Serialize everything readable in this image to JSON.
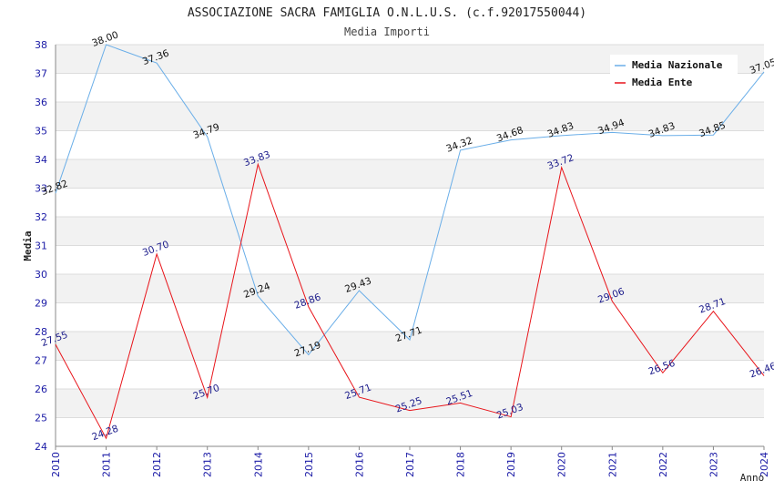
{
  "chart_data": {
    "type": "line",
    "title": "ASSOCIAZIONE SACRA FAMIGLIA O.N.L.U.S. (c.f.92017550044)",
    "subtitle": "Media Importi",
    "xlabel": "Anno",
    "ylabel": "Media",
    "ylim": [
      24,
      38
    ],
    "grid": true,
    "legend_position": "top-right",
    "categories": [
      "2010",
      "2011",
      "2012",
      "2013",
      "2014",
      "2015",
      "2016",
      "2017",
      "2018",
      "2019",
      "2020",
      "2021",
      "2022",
      "2023",
      "2024"
    ],
    "series": [
      {
        "name": "Media Nazionale",
        "color": "#6aaee8",
        "label_color": "#111111",
        "values": [
          32.82,
          38.0,
          37.36,
          34.79,
          29.24,
          27.19,
          29.43,
          27.71,
          34.32,
          34.68,
          34.83,
          34.94,
          34.83,
          34.85,
          37.05
        ],
        "labels": [
          "32.82",
          "38.00",
          "37.36",
          "34.79",
          "29.24",
          "27.19",
          "29.43",
          "27.71",
          "34.32",
          "34.68",
          "34.83",
          "34.94",
          "34.83",
          "34.85",
          "37.05"
        ]
      },
      {
        "name": "Media Ente",
        "color": "#e8141a",
        "label_color": "#1a1a8a",
        "values": [
          27.55,
          24.28,
          30.7,
          25.7,
          33.83,
          28.86,
          25.71,
          25.25,
          25.51,
          25.03,
          33.72,
          29.06,
          26.56,
          28.71,
          26.46
        ],
        "labels": [
          "27.55",
          "24.28",
          "30.70",
          "25.70",
          "33.83",
          "28.86",
          "25.71",
          "25.25",
          "25.51",
          "25.03",
          "33.72",
          "29.06",
          "26.56",
          "28.71",
          "26.46"
        ]
      }
    ]
  }
}
